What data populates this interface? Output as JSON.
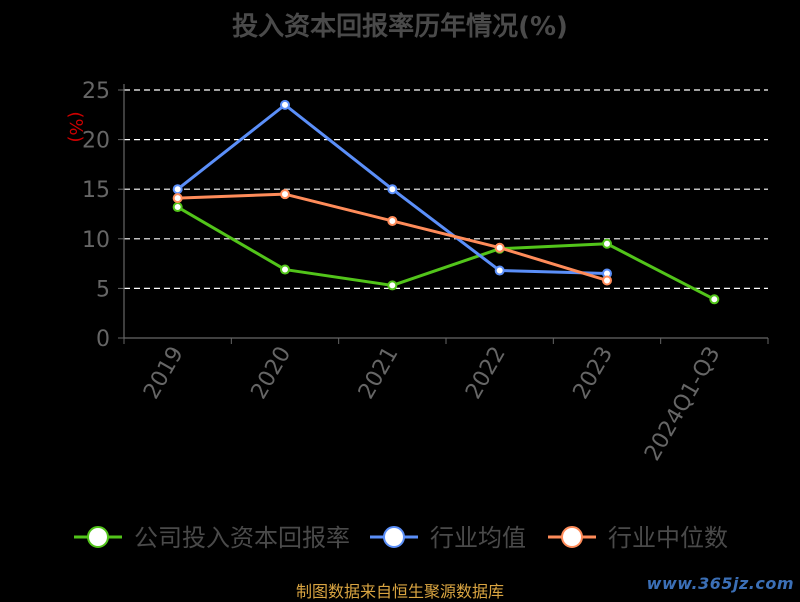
{
  "chart_data": {
    "type": "line",
    "title": "投入资本回报率历年情况(%)",
    "ylabel": "(%)",
    "ylim": [
      0,
      25
    ],
    "yticks": [
      0,
      5,
      10,
      15,
      20,
      25
    ],
    "grid": true,
    "legend_position": "bottom",
    "categories": [
      "2019",
      "2020",
      "2021",
      "2022",
      "2023",
      "2024Q1-Q3"
    ],
    "series": [
      {
        "name": "公司投入资本回报率",
        "color": "#52c41a",
        "values": [
          13.2,
          6.9,
          5.3,
          9.0,
          9.5,
          3.9
        ]
      },
      {
        "name": "行业均值",
        "color": "#5b8ff9",
        "values": [
          15.0,
          23.5,
          15.0,
          6.8,
          6.5,
          null
        ]
      },
      {
        "name": "行业中位数",
        "color": "#ff8c5a",
        "values": [
          14.1,
          14.5,
          11.8,
          9.1,
          5.8,
          null
        ]
      }
    ]
  },
  "footer": {
    "source": "制图数据来自恒生聚源数据库",
    "watermark": "www.365jz.com"
  },
  "colors": {
    "axis": "#666666",
    "grid": "#ffffff",
    "ylabel": "#cc0000"
  }
}
